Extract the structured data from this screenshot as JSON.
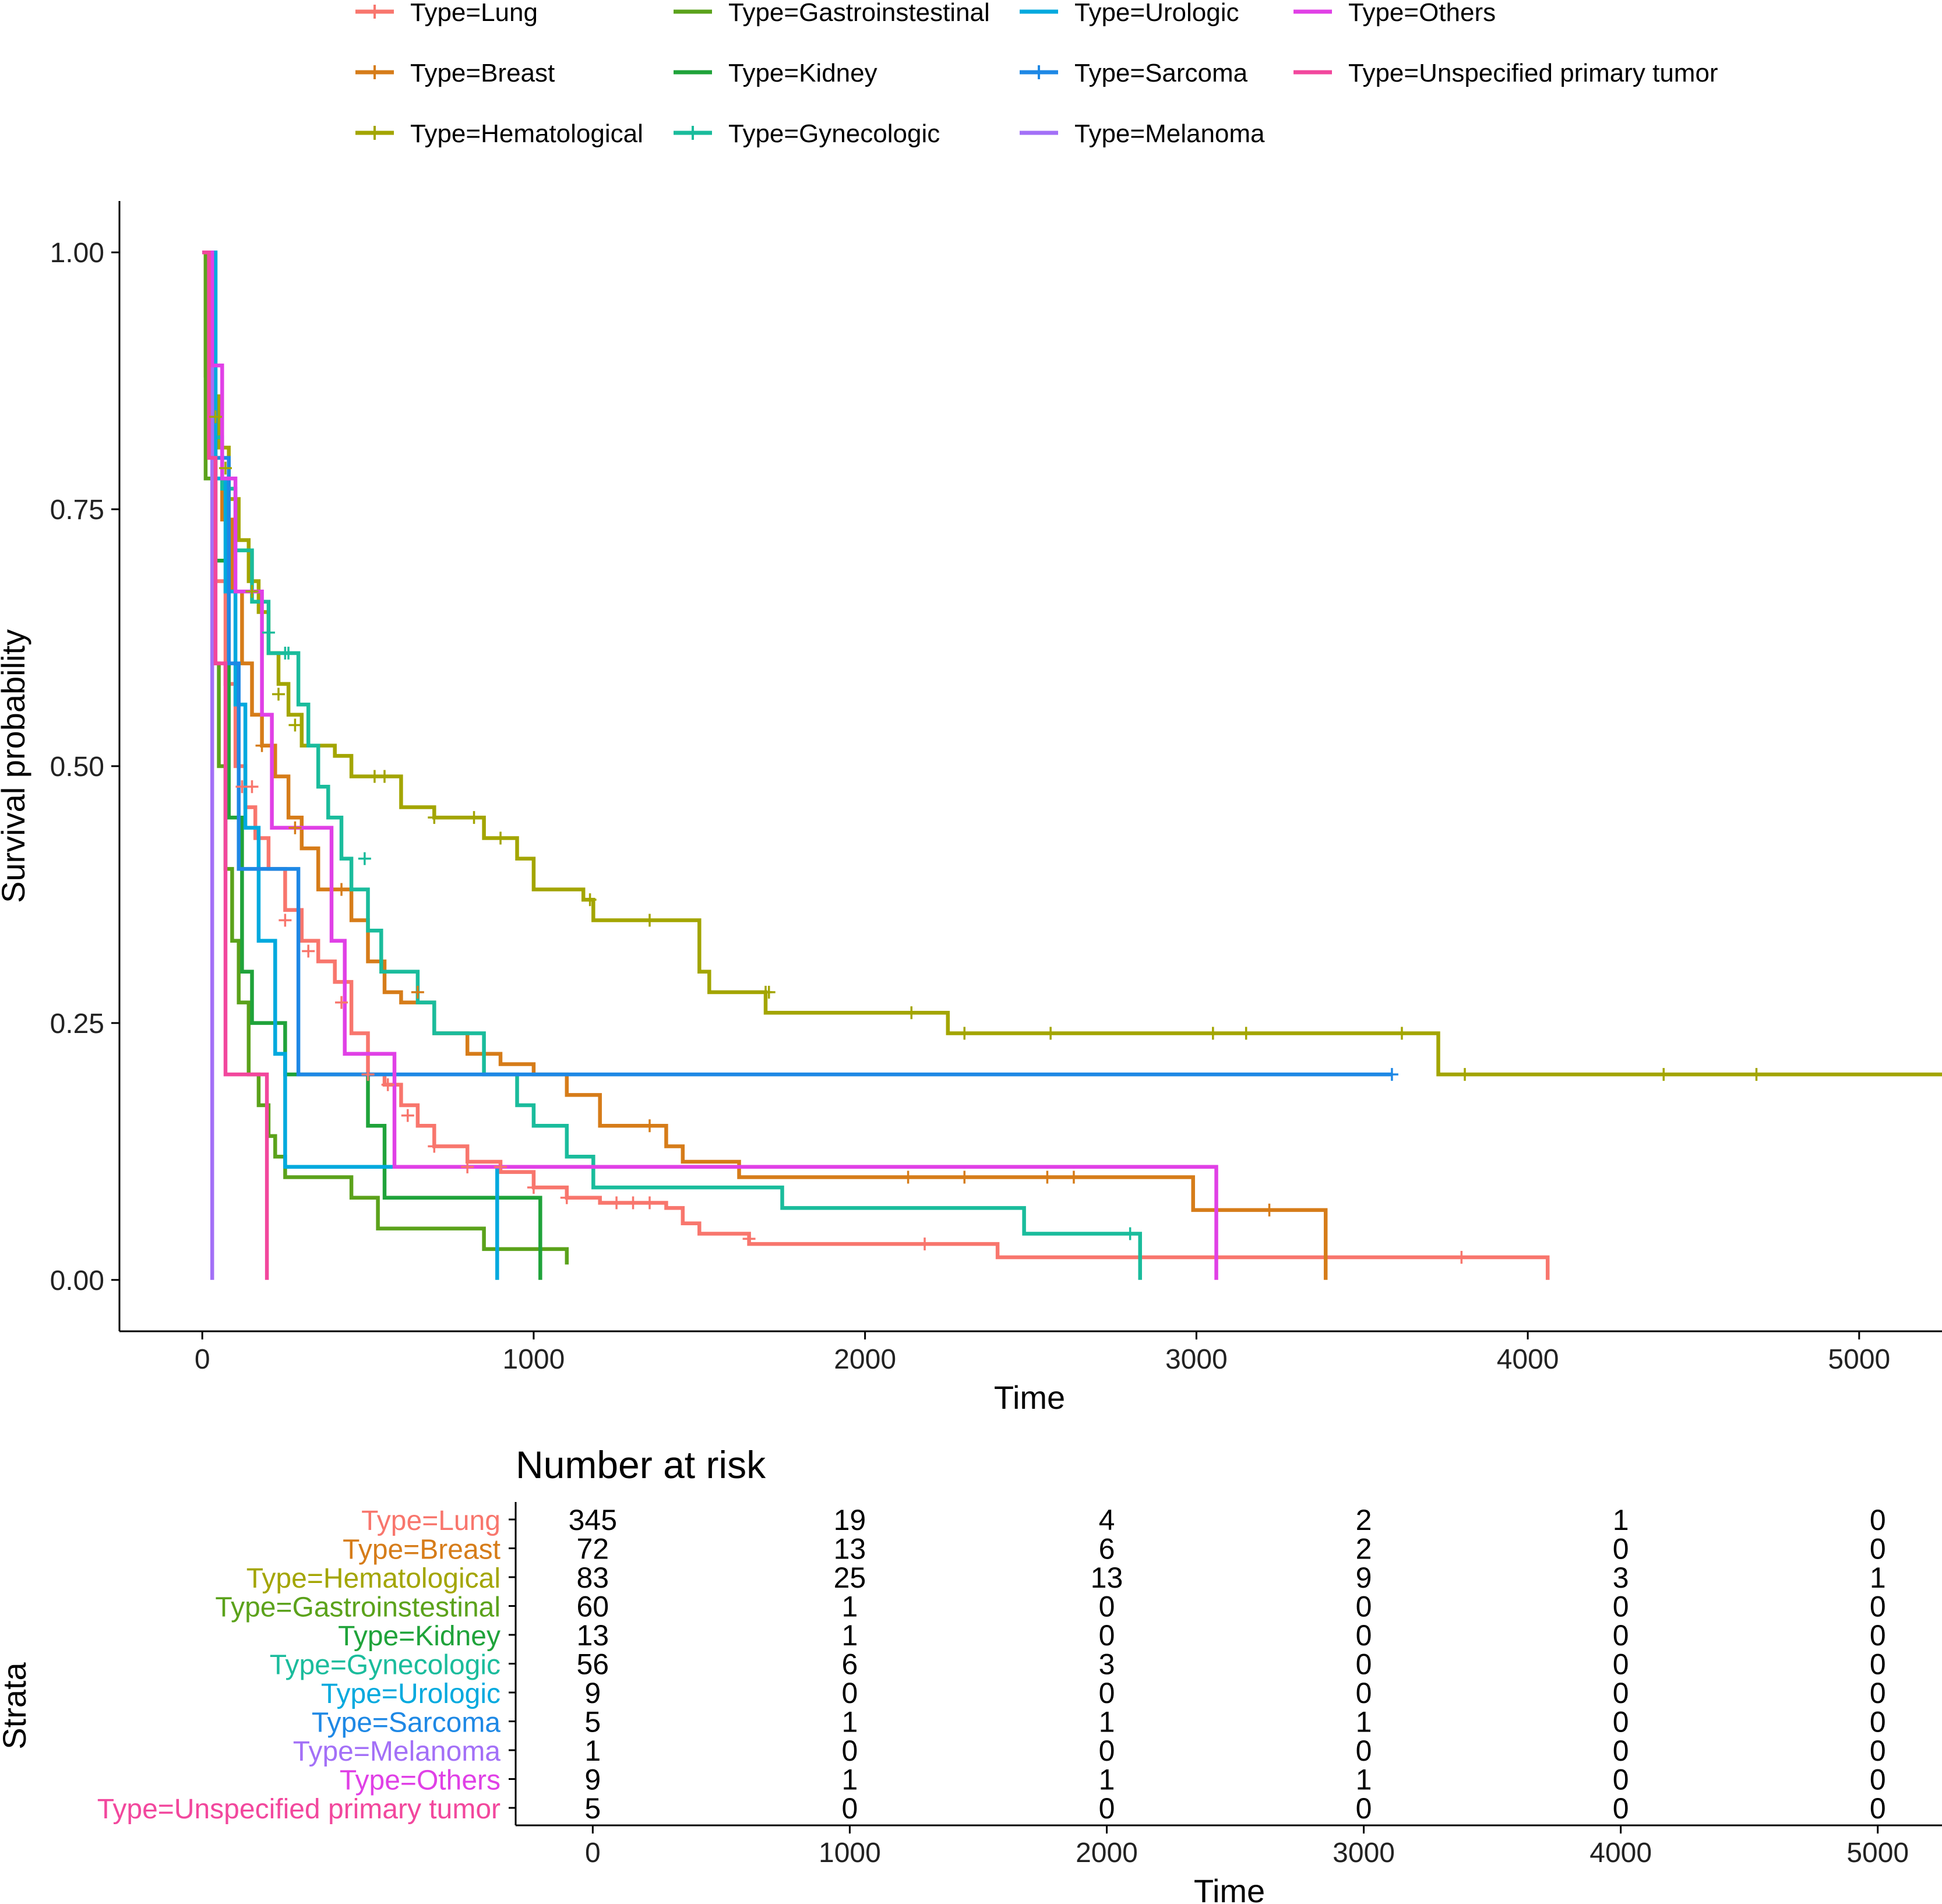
{
  "chart_data": {
    "type": "line",
    "subtype": "kaplan-meier",
    "title": "",
    "xlabel": "Time",
    "ylabel": "Survival probability",
    "xlim": [
      -250,
      5250
    ],
    "ylim": [
      -0.05,
      1.05
    ],
    "xticks": [
      0,
      1000,
      2000,
      3000,
      4000,
      5000
    ],
    "xtick_labels": [
      "0",
      "1000",
      "2000",
      "3000",
      "4000",
      "5000"
    ],
    "yticks": [
      0,
      0.25,
      0.5,
      0.75,
      1.0
    ],
    "ytick_labels": [
      "0.00",
      "0.25",
      "0.50",
      "0.75",
      "1.00"
    ],
    "grid": false,
    "legend_position": "top",
    "series": [
      {
        "name": "Type=Lung",
        "color": "#F8766D",
        "steps": [
          [
            0,
            1
          ],
          [
            15,
            0.82
          ],
          [
            40,
            0.68
          ],
          [
            70,
            0.58
          ],
          [
            100,
            0.5
          ],
          [
            130,
            0.46
          ],
          [
            160,
            0.43
          ],
          [
            200,
            0.4
          ],
          [
            250,
            0.36
          ],
          [
            300,
            0.33
          ],
          [
            350,
            0.31
          ],
          [
            400,
            0.29
          ],
          [
            450,
            0.24
          ],
          [
            500,
            0.2
          ],
          [
            550,
            0.19
          ],
          [
            600,
            0.17
          ],
          [
            650,
            0.15
          ],
          [
            700,
            0.13
          ],
          [
            800,
            0.115
          ],
          [
            900,
            0.105
          ],
          [
            1000,
            0.09
          ],
          [
            1100,
            0.08
          ],
          [
            1200,
            0.075
          ],
          [
            1400,
            0.07
          ],
          [
            1450,
            0.055
          ],
          [
            1500,
            0.045
          ],
          [
            1650,
            0.035
          ],
          [
            2400,
            0.022
          ],
          [
            4060,
            0
          ]
        ],
        "censors": [
          [
            120,
            0.48
          ],
          [
            150,
            0.48
          ],
          [
            250,
            0.35
          ],
          [
            320,
            0.32
          ],
          [
            420,
            0.27
          ],
          [
            500,
            0.2
          ],
          [
            560,
            0.19
          ],
          [
            620,
            0.16
          ],
          [
            700,
            0.13
          ],
          [
            800,
            0.11
          ],
          [
            900,
            0.11
          ],
          [
            1000,
            0.09
          ],
          [
            1100,
            0.08
          ],
          [
            1250,
            0.075
          ],
          [
            1300,
            0.075
          ],
          [
            1350,
            0.075
          ],
          [
            1650,
            0.04
          ],
          [
            2180,
            0.035
          ],
          [
            3800,
            0.022
          ]
        ]
      },
      {
        "name": "Type=Breast",
        "color": "#D67C19",
        "steps": [
          [
            0,
            1
          ],
          [
            10,
            0.88
          ],
          [
            30,
            0.8
          ],
          [
            60,
            0.74
          ],
          [
            90,
            0.67
          ],
          [
            120,
            0.6
          ],
          [
            150,
            0.55
          ],
          [
            180,
            0.52
          ],
          [
            220,
            0.49
          ],
          [
            260,
            0.45
          ],
          [
            300,
            0.42
          ],
          [
            350,
            0.38
          ],
          [
            450,
            0.35
          ],
          [
            500,
            0.31
          ],
          [
            550,
            0.28
          ],
          [
            600,
            0.27
          ],
          [
            700,
            0.24
          ],
          [
            800,
            0.22
          ],
          [
            900,
            0.21
          ],
          [
            1000,
            0.2
          ],
          [
            1100,
            0.18
          ],
          [
            1200,
            0.15
          ],
          [
            1400,
            0.13
          ],
          [
            1450,
            0.115
          ],
          [
            1620,
            0.1
          ],
          [
            2990,
            0.068
          ],
          [
            3390,
            0
          ]
        ],
        "censors": [
          [
            180,
            0.52
          ],
          [
            280,
            0.44
          ],
          [
            420,
            0.38
          ],
          [
            650,
            0.28
          ],
          [
            1350,
            0.15
          ],
          [
            2130,
            0.1
          ],
          [
            2300,
            0.1
          ],
          [
            2550,
            0.1
          ],
          [
            2630,
            0.1
          ],
          [
            3220,
            0.068
          ]
        ]
      },
      {
        "name": "Type=Hematological",
        "color": "#A3A500",
        "steps": [
          [
            0,
            1
          ],
          [
            20,
            0.86
          ],
          [
            50,
            0.81
          ],
          [
            80,
            0.76
          ],
          [
            110,
            0.72
          ],
          [
            140,
            0.68
          ],
          [
            170,
            0.65
          ],
          [
            200,
            0.61
          ],
          [
            230,
            0.58
          ],
          [
            260,
            0.55
          ],
          [
            300,
            0.52
          ],
          [
            400,
            0.51
          ],
          [
            450,
            0.49
          ],
          [
            600,
            0.46
          ],
          [
            700,
            0.45
          ],
          [
            850,
            0.43
          ],
          [
            950,
            0.41
          ],
          [
            1000,
            0.38
          ],
          [
            1150,
            0.37
          ],
          [
            1180,
            0.35
          ],
          [
            1500,
            0.3
          ],
          [
            1530,
            0.28
          ],
          [
            1700,
            0.26
          ],
          [
            2250,
            0.24
          ],
          [
            3730,
            0.2
          ],
          [
            5250,
            0.2
          ]
        ],
        "censors": [
          [
            40,
            0.84
          ],
          [
            70,
            0.79
          ],
          [
            150,
            0.67
          ],
          [
            230,
            0.57
          ],
          [
            280,
            0.54
          ],
          [
            520,
            0.49
          ],
          [
            550,
            0.49
          ],
          [
            700,
            0.45
          ],
          [
            820,
            0.45
          ],
          [
            900,
            0.43
          ],
          [
            1170,
            0.37
          ],
          [
            1350,
            0.35
          ],
          [
            1700,
            0.28
          ],
          [
            1710,
            0.28
          ],
          [
            2140,
            0.26
          ],
          [
            2300,
            0.24
          ],
          [
            2560,
            0.24
          ],
          [
            3050,
            0.24
          ],
          [
            3150,
            0.24
          ],
          [
            3620,
            0.24
          ],
          [
            3810,
            0.2
          ],
          [
            4410,
            0.2
          ],
          [
            4690,
            0.2
          ]
        ]
      },
      {
        "name": "Type=Gastroinstestinal",
        "color": "#5BA21B",
        "steps": [
          [
            0,
            1
          ],
          [
            10,
            0.78
          ],
          [
            30,
            0.6
          ],
          [
            50,
            0.5
          ],
          [
            70,
            0.4
          ],
          [
            90,
            0.33
          ],
          [
            110,
            0.27
          ],
          [
            140,
            0.2
          ],
          [
            170,
            0.17
          ],
          [
            200,
            0.14
          ],
          [
            220,
            0.12
          ],
          [
            250,
            0.1
          ],
          [
            450,
            0.08
          ],
          [
            530,
            0.05
          ],
          [
            850,
            0.03
          ],
          [
            1100,
            0.015
          ]
        ],
        "censors": []
      },
      {
        "name": "Type=Kidney",
        "color": "#1FA33A",
        "steps": [
          [
            0,
            1
          ],
          [
            40,
            0.7
          ],
          [
            80,
            0.45
          ],
          [
            120,
            0.3
          ],
          [
            150,
            0.25
          ],
          [
            250,
            0.2
          ],
          [
            500,
            0.15
          ],
          [
            550,
            0.08
          ],
          [
            1020,
            0
          ]
        ],
        "censors": []
      },
      {
        "name": "Type=Gynecologic",
        "color": "#1ABC9C",
        "steps": [
          [
            0,
            1
          ],
          [
            20,
            0.82
          ],
          [
            60,
            0.77
          ],
          [
            100,
            0.71
          ],
          [
            150,
            0.66
          ],
          [
            200,
            0.61
          ],
          [
            290,
            0.56
          ],
          [
            320,
            0.52
          ],
          [
            350,
            0.48
          ],
          [
            380,
            0.45
          ],
          [
            420,
            0.41
          ],
          [
            450,
            0.38
          ],
          [
            500,
            0.34
          ],
          [
            540,
            0.3
          ],
          [
            600,
            0.3
          ],
          [
            650,
            0.27
          ],
          [
            700,
            0.24
          ],
          [
            850,
            0.2
          ],
          [
            950,
            0.17
          ],
          [
            1000,
            0.15
          ],
          [
            1100,
            0.12
          ],
          [
            1180,
            0.09
          ],
          [
            1750,
            0.07
          ],
          [
            2480,
            0.045
          ],
          [
            2830,
            0
          ]
        ],
        "censors": [
          [
            200,
            0.63
          ],
          [
            250,
            0.61
          ],
          [
            260,
            0.61
          ],
          [
            490,
            0.41
          ],
          [
            2800,
            0.045
          ]
        ]
      },
      {
        "name": "Type=Urologic",
        "color": "#00A9DE",
        "steps": [
          [
            0,
            1
          ],
          [
            40,
            0.78
          ],
          [
            70,
            0.67
          ],
          [
            100,
            0.56
          ],
          [
            130,
            0.44
          ],
          [
            170,
            0.33
          ],
          [
            220,
            0.22
          ],
          [
            250,
            0.11
          ],
          [
            890,
            0
          ]
        ],
        "censors": []
      },
      {
        "name": "Type=Sarcoma",
        "color": "#1E88E5",
        "steps": [
          [
            0,
            1
          ],
          [
            30,
            0.8
          ],
          [
            80,
            0.6
          ],
          [
            110,
            0.4
          ],
          [
            290,
            0.2
          ],
          [
            3590,
            0.2
          ]
        ],
        "censors": [
          [
            3590,
            0.2
          ]
        ]
      },
      {
        "name": "Type=Melanoma",
        "color": "#A370F7",
        "steps": [
          [
            0,
            1
          ],
          [
            30,
            1
          ],
          [
            30,
            0
          ]
        ],
        "censors": []
      },
      {
        "name": "Type=Others",
        "color": "#E040E6",
        "steps": [
          [
            0,
            1
          ],
          [
            30,
            0.89
          ],
          [
            60,
            0.78
          ],
          [
            100,
            0.67
          ],
          [
            180,
            0.55
          ],
          [
            210,
            0.44
          ],
          [
            390,
            0.33
          ],
          [
            430,
            0.22
          ],
          [
            580,
            0.11
          ],
          [
            3060,
            0
          ]
        ],
        "censors": []
      },
      {
        "name": "Type=Unspecified primary tumor",
        "color": "#F2479D",
        "steps": [
          [
            0,
            1
          ],
          [
            20,
            0.8
          ],
          [
            40,
            0.6
          ],
          [
            70,
            0.2
          ],
          [
            195,
            0
          ]
        ],
        "censors": []
      }
    ],
    "risk_table": {
      "title": "Number at risk",
      "ylabel": "Strata",
      "xlabel": "Time",
      "time_points": [
        0,
        1000,
        2000,
        3000,
        4000,
        5000
      ],
      "time_labels": [
        "0",
        "1000",
        "2000",
        "3000",
        "4000",
        "5000"
      ],
      "rows": [
        {
          "label": "Type=Lung",
          "counts": [
            "345",
            "19",
            "4",
            "2",
            "1",
            "0"
          ]
        },
        {
          "label": "Type=Breast",
          "counts": [
            "72",
            "13",
            "6",
            "2",
            "0",
            "0"
          ]
        },
        {
          "label": "Type=Hematological",
          "counts": [
            "83",
            "25",
            "13",
            "9",
            "3",
            "1"
          ]
        },
        {
          "label": "Type=Gastroinstestinal",
          "counts": [
            "60",
            "1",
            "0",
            "0",
            "0",
            "0"
          ]
        },
        {
          "label": "Type=Kidney",
          "counts": [
            "13",
            "1",
            "0",
            "0",
            "0",
            "0"
          ]
        },
        {
          "label": "Type=Gynecologic",
          "counts": [
            "56",
            "6",
            "3",
            "0",
            "0",
            "0"
          ]
        },
        {
          "label": "Type=Urologic",
          "counts": [
            "9",
            "0",
            "0",
            "0",
            "0",
            "0"
          ]
        },
        {
          "label": "Type=Sarcoma",
          "counts": [
            "5",
            "1",
            "1",
            "1",
            "0",
            "0"
          ]
        },
        {
          "label": "Type=Melanoma",
          "counts": [
            "1",
            "0",
            "0",
            "0",
            "0",
            "0"
          ]
        },
        {
          "label": "Type=Others",
          "counts": [
            "9",
            "1",
            "1",
            "1",
            "0",
            "0"
          ]
        },
        {
          "label": "Type=Unspecified primary tumor",
          "counts": [
            "5",
            "0",
            "0",
            "0",
            "0",
            "0"
          ]
        }
      ]
    }
  }
}
